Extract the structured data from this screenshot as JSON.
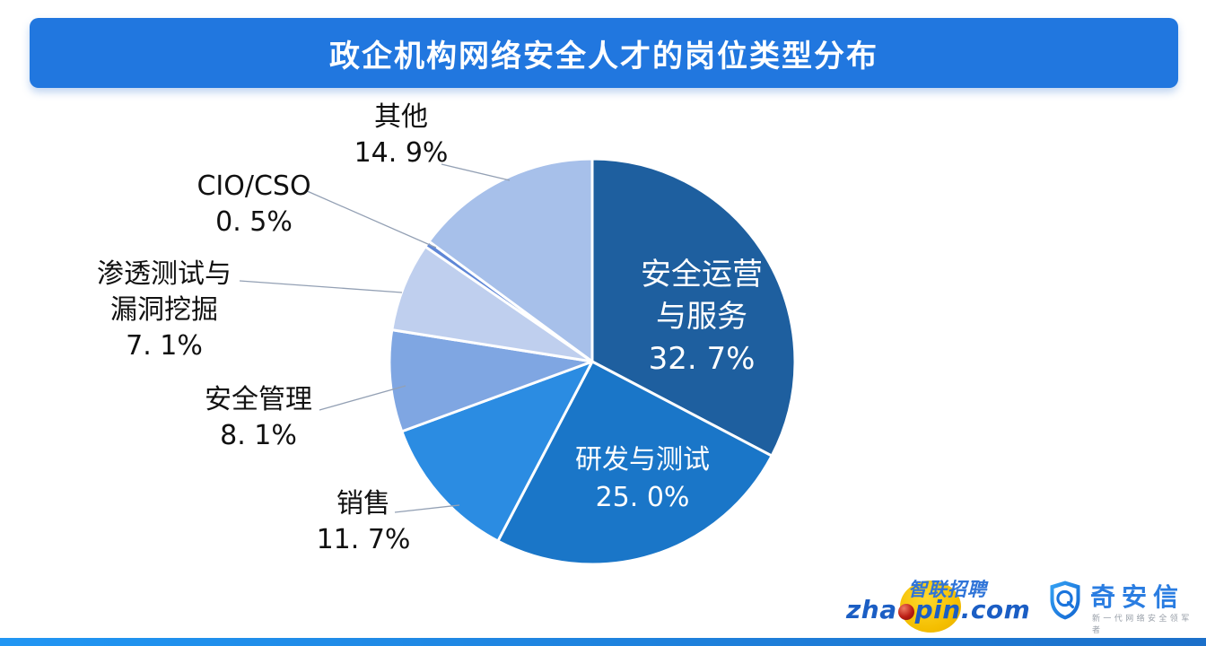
{
  "title": "政企机构网络安全人才的岗位类型分布",
  "chart_data": {
    "type": "pie",
    "title": "政企机构网络安全人才的岗位类型分布",
    "start_angle_deg": 0,
    "direction": "clockwise",
    "unit": "%",
    "legend": "none",
    "slices": [
      {
        "key": "security-operations-services",
        "label": "安全运营与服务",
        "label_lines": [
          "安全运营",
          "与服务"
        ],
        "value": 32.7,
        "display": "32. 7%",
        "color": "#1E5F9F",
        "label_position": "inside"
      },
      {
        "key": "rd-testing",
        "label": "研发与测试",
        "value": 25.0,
        "display": "25. 0%",
        "color": "#1A76C8",
        "label_position": "inside"
      },
      {
        "key": "sales",
        "label": "销售",
        "value": 11.7,
        "display": "11. 7%",
        "color": "#2B8CE2",
        "label_position": "outside"
      },
      {
        "key": "security-management",
        "label": "安全管理",
        "value": 8.1,
        "display": "8. 1%",
        "color": "#7FA6E2",
        "label_position": "outside"
      },
      {
        "key": "pentest-vuln-mining",
        "label": "渗透测试与漏洞挖掘",
        "label_lines": [
          "渗透测试与",
          "漏洞挖掘"
        ],
        "value": 7.1,
        "display": "7. 1%",
        "color": "#BFCFEE",
        "label_position": "outside"
      },
      {
        "key": "cio-cso",
        "label": "CIO/CSO",
        "value": 0.5,
        "display": "0. 5%",
        "color": "#5E86D6",
        "label_position": "outside"
      },
      {
        "key": "other",
        "label": "其他",
        "value": 14.9,
        "display": "14. 9%",
        "color": "#A7C0EA",
        "label_position": "outside"
      }
    ]
  },
  "footer": {
    "zhaopin": {
      "brand_cn": "智联招聘",
      "domain_prefix": "zha",
      "domain_suffix": "pin.com"
    },
    "qianxin": {
      "brand": "奇安信",
      "tagline": "新一代网络安全领军者"
    }
  },
  "colors": {
    "title_bar": "#2177DF",
    "leader_line": "#93A0B4",
    "bottom_bar_left": "#2196F3",
    "bottom_bar_right": "#1C70CA"
  }
}
